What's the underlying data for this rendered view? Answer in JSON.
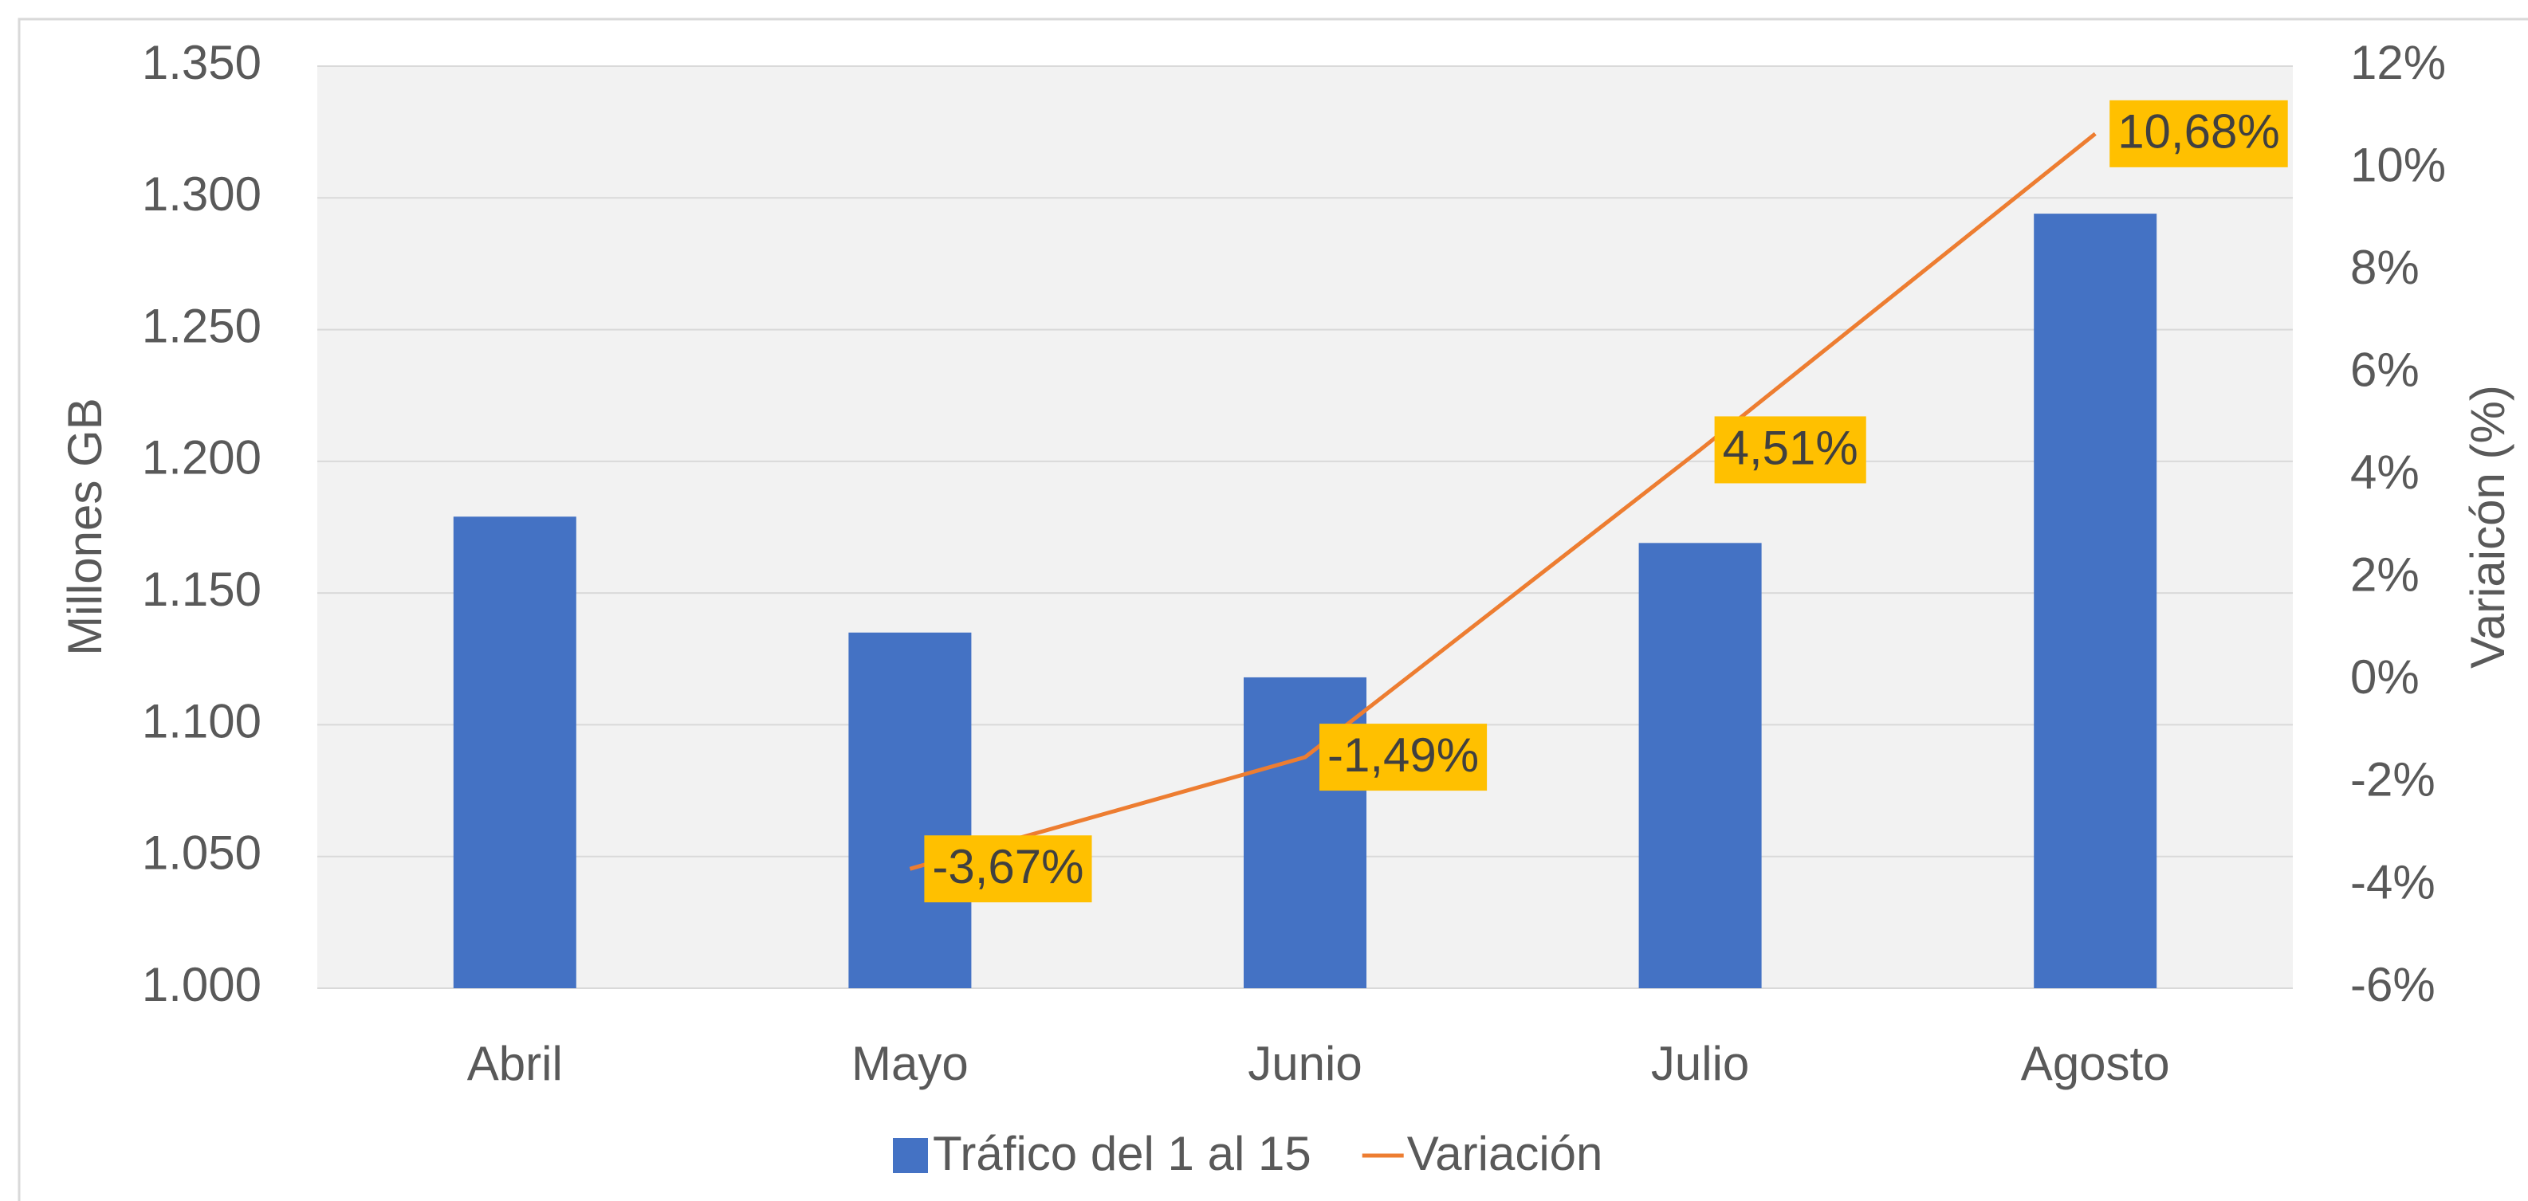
{
  "chart_data": {
    "type": "bar_line",
    "categories": [
      "Abril",
      "Mayo",
      "Junio",
      "Julio",
      "Agosto"
    ],
    "series": [
      {
        "name": "Tráfico del 1 al 15",
        "type": "bar",
        "color": "#4472c4",
        "values": [
          1179,
          1135,
          1118,
          1169,
          1294
        ]
      },
      {
        "name": "Variación",
        "type": "line",
        "axis": "y2",
        "color": "#ed7d31",
        "values": [
          null,
          -3.67,
          -1.49,
          4.51,
          10.68
        ],
        "value_labels": [
          null,
          "-3,67%",
          "-1,49%",
          "4,51%",
          "10,68%"
        ],
        "label_color": "#ffc000"
      }
    ],
    "ylabel": "Millones GB",
    "y2label": "Variaicón (%)",
    "ylim": [
      1000,
      1350
    ],
    "yticks": [
      {
        "value": 1000,
        "label": "1.000"
      },
      {
        "value": 1050,
        "label": "1.050"
      },
      {
        "value": 1100,
        "label": "1.100"
      },
      {
        "value": 1150,
        "label": "1.150"
      },
      {
        "value": 1200,
        "label": "1.200"
      },
      {
        "value": 1250,
        "label": "1.250"
      },
      {
        "value": 1300,
        "label": "1.300"
      },
      {
        "value": 1350,
        "label": "1.350"
      }
    ],
    "y2lim": [
      -6,
      12
    ],
    "y2ticks": [
      {
        "value": -6,
        "label": "-6%"
      },
      {
        "value": -4,
        "label": "-4%"
      },
      {
        "value": -2,
        "label": "-2%"
      },
      {
        "value": 0,
        "label": "0%"
      },
      {
        "value": 2,
        "label": "2%"
      },
      {
        "value": 4,
        "label": "4%"
      },
      {
        "value": 6,
        "label": "6%"
      },
      {
        "value": 8,
        "label": "8%"
      },
      {
        "value": 10,
        "label": "10%"
      },
      {
        "value": 12,
        "label": "12%"
      }
    ],
    "grid": true,
    "legend": "bottom"
  }
}
